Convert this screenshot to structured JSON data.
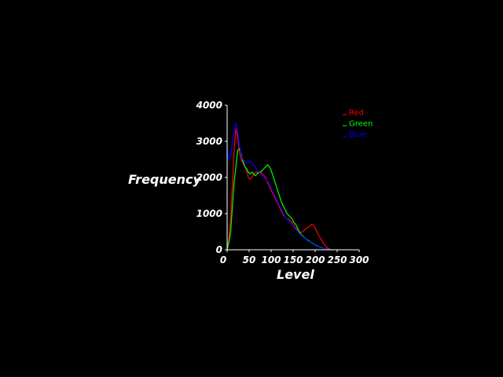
{
  "chart_data": {
    "type": "line",
    "title": "",
    "xlabel": "Level",
    "ylabel": "Frequency",
    "xlim": [
      0,
      300
    ],
    "ylim": [
      0,
      4000
    ],
    "xticks": [
      0,
      50,
      100,
      150,
      200,
      250,
      300
    ],
    "yticks": [
      0,
      1000,
      2000,
      3000,
      4000
    ],
    "grid": false,
    "legend_position": "top-right",
    "background": "#000000",
    "axis_color": "#ffffff",
    "series": [
      {
        "name": "Red",
        "color": "#ff0000",
        "x": [
          0,
          4,
          8,
          12,
          16,
          20,
          24,
          28,
          32,
          36,
          40,
          44,
          48,
          52,
          56,
          60,
          64,
          68,
          72,
          76,
          80,
          84,
          88,
          92,
          96,
          100,
          104,
          108,
          112,
          116,
          120,
          124,
          128,
          132,
          136,
          140,
          144,
          148,
          152,
          156,
          160,
          164,
          168,
          172,
          176,
          180,
          184,
          188,
          192,
          196,
          200,
          204,
          208,
          212,
          216,
          220,
          224,
          228,
          232,
          236,
          240
        ],
        "y": [
          0,
          300,
          900,
          1800,
          2800,
          3350,
          3100,
          2700,
          2500,
          2400,
          2300,
          2200,
          2000,
          1950,
          2000,
          2100,
          2150,
          2150,
          2100,
          2150,
          2100,
          2050,
          2000,
          1850,
          1750,
          1650,
          1550,
          1450,
          1350,
          1250,
          1150,
          1050,
          950,
          900,
          850,
          850,
          800,
          750,
          650,
          600,
          550,
          500,
          480,
          500,
          550,
          600,
          620,
          650,
          700,
          680,
          600,
          500,
          400,
          320,
          240,
          160,
          100,
          50,
          20,
          5,
          0
        ]
      },
      {
        "name": "Green",
        "color": "#00ff00",
        "x": [
          0,
          4,
          8,
          12,
          16,
          20,
          24,
          28,
          32,
          36,
          40,
          44,
          48,
          52,
          56,
          60,
          64,
          68,
          72,
          76,
          80,
          84,
          88,
          92,
          96,
          100,
          104,
          108,
          112,
          116,
          120,
          124,
          128,
          132,
          136,
          140,
          144,
          148,
          152,
          156,
          160,
          164,
          168,
          172,
          176,
          180,
          184,
          188,
          192,
          196,
          200,
          204,
          208,
          212,
          216,
          220,
          224,
          228,
          232,
          236,
          240
        ],
        "y": [
          0,
          200,
          500,
          1200,
          1900,
          2300,
          2750,
          2800,
          2650,
          2450,
          2300,
          2250,
          2150,
          2100,
          2150,
          2100,
          2050,
          2100,
          2150,
          2150,
          2200,
          2250,
          2300,
          2350,
          2300,
          2200,
          2050,
          1900,
          1750,
          1600,
          1450,
          1300,
          1200,
          1100,
          1000,
          950,
          900,
          850,
          750,
          700,
          600,
          500,
          420,
          380,
          330,
          290,
          260,
          220,
          190,
          160,
          130,
          110,
          90,
          70,
          50,
          35,
          20,
          12,
          5,
          2,
          0
        ]
      },
      {
        "name": "Blue",
        "color": "#0000ff",
        "x": [
          0,
          4,
          8,
          12,
          16,
          20,
          24,
          28,
          32,
          36,
          40,
          44,
          48,
          52,
          56,
          60,
          64,
          68,
          72,
          76,
          80,
          84,
          88,
          92,
          96,
          100,
          104,
          108,
          112,
          116,
          120,
          124,
          128,
          132,
          136,
          140,
          144,
          148,
          152,
          156,
          160,
          164,
          168,
          172,
          176,
          180,
          184,
          188,
          192,
          196,
          200,
          204,
          208,
          212,
          216,
          220,
          224,
          228,
          232,
          236,
          240
        ],
        "y": [
          2800,
          2500,
          2600,
          3000,
          3300,
          3500,
          3300,
          2900,
          2600,
          2500,
          2450,
          2400,
          2450,
          2450,
          2400,
          2350,
          2300,
          2200,
          2150,
          2100,
          2050,
          2000,
          1950,
          1900,
          1800,
          1700,
          1600,
          1500,
          1400,
          1300,
          1200,
          1100,
          1000,
          900,
          850,
          800,
          750,
          700,
          620,
          560,
          500,
          450,
          400,
          360,
          320,
          280,
          240,
          210,
          180,
          150,
          120,
          100,
          80,
          60,
          45,
          30,
          20,
          10,
          5,
          2,
          0
        ]
      }
    ]
  }
}
